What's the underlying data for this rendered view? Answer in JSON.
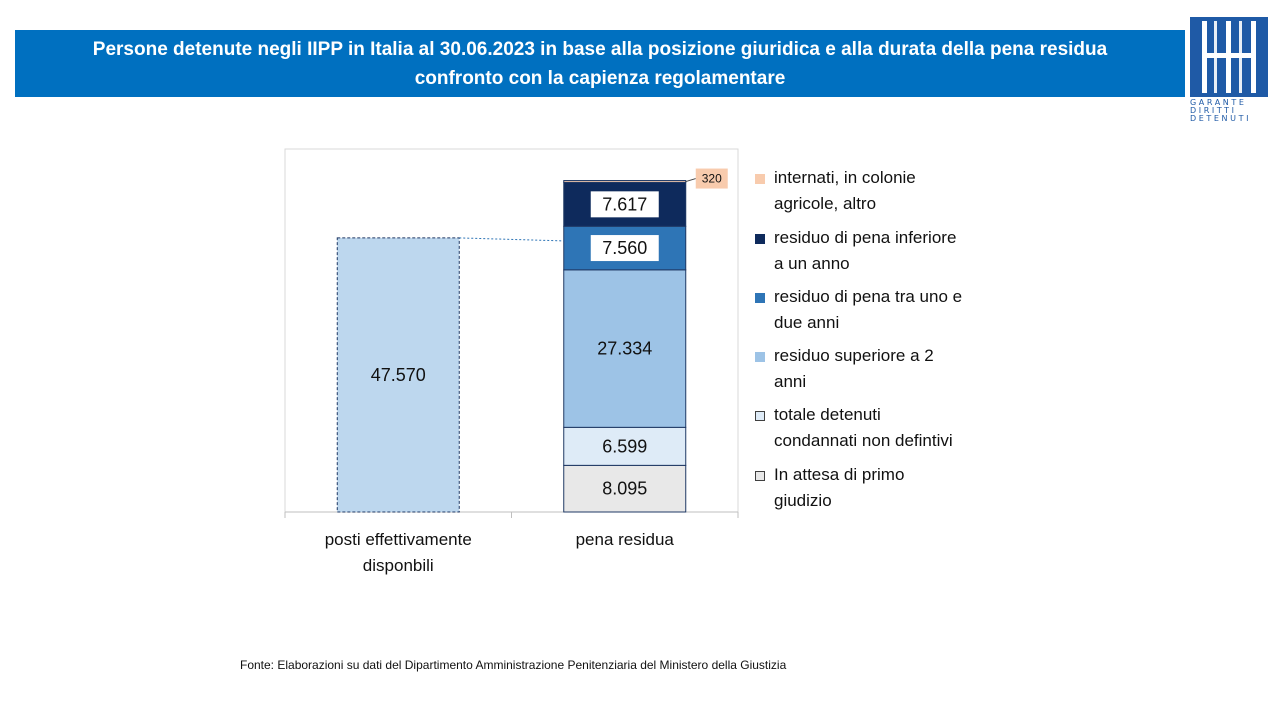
{
  "header": {
    "title_line1": "Persone detenute negli IIPP in Italia al 30.06.2023 in base alla posizione giuridica e alla durata della pena residua",
    "title_line2": "confronto con la capienza regolamentare"
  },
  "logo": {
    "line1": "GARANTE",
    "line2": "DIRITTI",
    "line3": "DETENUTI"
  },
  "colors": {
    "title_bg": "#0070c0",
    "capacity": "#bdd7ee",
    "in_attesa": "#e8e8e8",
    "non_definitivi": "#deebf7",
    "sup_2": "#9dc3e6",
    "uno_due": "#2e75b6",
    "inf_anno": "#0e2a5c",
    "internati": "#f8cbad"
  },
  "chart_data": {
    "type": "bar",
    "stacked": true,
    "categories": [
      "posti effettivamente\ndisponbili",
      "pena residua"
    ],
    "series": [
      {
        "name": "In attesa di primo giudizio",
        "values": [
          null,
          8095
        ],
        "label": "8.095",
        "color": "#e8e8e8"
      },
      {
        "name": "totale detenuti condannati non defintivi",
        "values": [
          null,
          6599
        ],
        "label": "6.599",
        "color": "#deebf7"
      },
      {
        "name": "residuo superiore a 2 anni",
        "values": [
          null,
          27334
        ],
        "label": "27.334",
        "color": "#9dc3e6"
      },
      {
        "name": "residuo di pena tra uno e due anni",
        "values": [
          null,
          7560
        ],
        "label": "7.560",
        "color": "#2e75b6"
      },
      {
        "name": "residuo di pena inferiore a un anno",
        "values": [
          null,
          7617
        ],
        "label": "7.617",
        "color": "#0e2a5c"
      },
      {
        "name": "internati, in colonie agricole, altro",
        "values": [
          null,
          320
        ],
        "label": "320",
        "color": "#f8cbad"
      },
      {
        "name": "",
        "values": [
          47570,
          null
        ],
        "label": "47.570",
        "color": "#bdd7ee"
      }
    ],
    "ylim": [
      0,
      63000
    ],
    "legend": "right",
    "grid": false
  },
  "legend": {
    "items": [
      {
        "label": "internati, in colonie\nagricole, altro",
        "color": "#f8cbad"
      },
      {
        "label": "residuo di pena inferiore\na un anno",
        "color": "#0e2a5c"
      },
      {
        "label": "residuo di pena tra uno e\ndue anni",
        "color": "#2e75b6"
      },
      {
        "label": "residuo superiore a 2\nanni",
        "color": "#9dc3e6"
      },
      {
        "label": "totale detenuti\ncondannati non defintivi",
        "color": "#deebf7"
      },
      {
        "label": "In attesa di primo\ngiudizio",
        "color": "#e8e8e8"
      }
    ]
  },
  "footer": {
    "source": "Fonte:  Elaborazioni su dati del Dipartimento  Amministrazione Penitenziaria del Ministero della Giustizia"
  }
}
